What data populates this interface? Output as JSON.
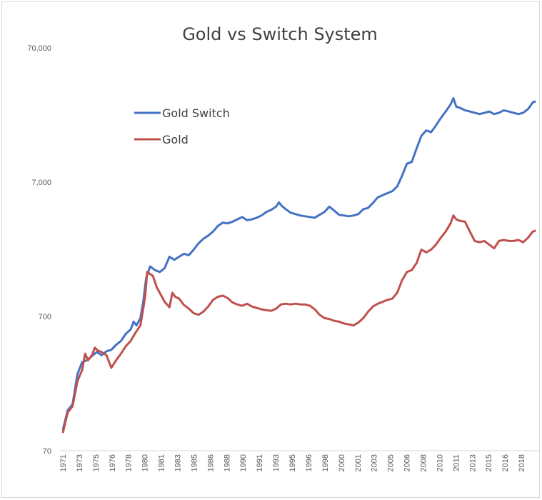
{
  "chart_data": {
    "type": "line",
    "title": "Gold vs Switch System",
    "y_scale": "log",
    "ylim": [
      70,
      70000
    ],
    "y_ticks": [
      {
        "value": 70,
        "label": "70"
      },
      {
        "value": 700,
        "label": "700"
      },
      {
        "value": 7000,
        "label": "7,000"
      },
      {
        "value": 70000,
        "label": "70,000"
      }
    ],
    "x_tick_labels": [
      "1971",
      "1973",
      "1975",
      "1976",
      "1978",
      "1980",
      "1981",
      "1983",
      "1985",
      "1986",
      "1988",
      "1990",
      "1991",
      "1993",
      "1995",
      "1996",
      "1998",
      "2000",
      "2001",
      "2003",
      "2005",
      "2006",
      "2008",
      "2010",
      "2011",
      "2013",
      "2015",
      "2016",
      "2018"
    ],
    "xlim": [
      1971,
      2020
    ],
    "grid": false,
    "legend_position": "upper-left",
    "series": [
      {
        "name": "Gold Switch",
        "color": "#4472C4",
        "points": [
          [
            1971.0,
            100
          ],
          [
            1971.5,
            140
          ],
          [
            1972.0,
            155
          ],
          [
            1972.5,
            260
          ],
          [
            1973.0,
            320
          ],
          [
            1973.5,
            330
          ],
          [
            1974.0,
            355
          ],
          [
            1974.5,
            380
          ],
          [
            1975.0,
            360
          ],
          [
            1975.5,
            385
          ],
          [
            1976.0,
            395
          ],
          [
            1976.5,
            430
          ],
          [
            1977.0,
            460
          ],
          [
            1977.5,
            520
          ],
          [
            1978.0,
            560
          ],
          [
            1978.3,
            640
          ],
          [
            1978.6,
            600
          ],
          [
            1979.0,
            680
          ],
          [
            1979.3,
            900
          ],
          [
            1979.6,
            1350
          ],
          [
            1980.0,
            1650
          ],
          [
            1980.5,
            1550
          ],
          [
            1981.0,
            1500
          ],
          [
            1981.5,
            1600
          ],
          [
            1982.0,
            1950
          ],
          [
            1982.5,
            1850
          ],
          [
            1983.0,
            1950
          ],
          [
            1983.5,
            2050
          ],
          [
            1984.0,
            2000
          ],
          [
            1984.5,
            2200
          ],
          [
            1985.0,
            2450
          ],
          [
            1985.5,
            2650
          ],
          [
            1986.0,
            2800
          ],
          [
            1986.5,
            3000
          ],
          [
            1987.0,
            3300
          ],
          [
            1987.5,
            3500
          ],
          [
            1988.0,
            3450
          ],
          [
            1988.5,
            3550
          ],
          [
            1989.0,
            3700
          ],
          [
            1989.5,
            3850
          ],
          [
            1990.0,
            3650
          ],
          [
            1990.5,
            3700
          ],
          [
            1991.0,
            3800
          ],
          [
            1991.5,
            3950
          ],
          [
            1992.0,
            4200
          ],
          [
            1992.5,
            4350
          ],
          [
            1993.0,
            4600
          ],
          [
            1993.3,
            4950
          ],
          [
            1993.6,
            4650
          ],
          [
            1994.0,
            4400
          ],
          [
            1994.5,
            4150
          ],
          [
            1995.0,
            4050
          ],
          [
            1995.5,
            3950
          ],
          [
            1996.0,
            3900
          ],
          [
            1996.5,
            3850
          ],
          [
            1997.0,
            3800
          ],
          [
            1997.5,
            4000
          ],
          [
            1998.0,
            4200
          ],
          [
            1998.5,
            4600
          ],
          [
            1999.0,
            4300
          ],
          [
            1999.5,
            4000
          ],
          [
            2000.0,
            3950
          ],
          [
            2000.5,
            3900
          ],
          [
            2001.0,
            3950
          ],
          [
            2001.5,
            4050
          ],
          [
            2002.0,
            4400
          ],
          [
            2002.5,
            4500
          ],
          [
            2003.0,
            4900
          ],
          [
            2003.5,
            5400
          ],
          [
            2004.0,
            5600
          ],
          [
            2004.5,
            5800
          ],
          [
            2005.0,
            6000
          ],
          [
            2005.5,
            6500
          ],
          [
            2006.0,
            7800
          ],
          [
            2006.5,
            9600
          ],
          [
            2007.0,
            9900
          ],
          [
            2007.5,
            12500
          ],
          [
            2008.0,
            15500
          ],
          [
            2008.5,
            17000
          ],
          [
            2009.0,
            16500
          ],
          [
            2009.5,
            18500
          ],
          [
            2010.0,
            21000
          ],
          [
            2010.5,
            23500
          ],
          [
            2011.0,
            26500
          ],
          [
            2011.3,
            29500
          ],
          [
            2011.6,
            25500
          ],
          [
            2012.0,
            25000
          ],
          [
            2012.5,
            24000
          ],
          [
            2013.0,
            23500
          ],
          [
            2013.5,
            23000
          ],
          [
            2014.0,
            22500
          ],
          [
            2014.5,
            23000
          ],
          [
            2015.0,
            23500
          ],
          [
            2015.5,
            22500
          ],
          [
            2016.0,
            23000
          ],
          [
            2016.5,
            24000
          ],
          [
            2017.0,
            23500
          ],
          [
            2017.5,
            23000
          ],
          [
            2018.0,
            22500
          ],
          [
            2018.5,
            23000
          ],
          [
            2019.0,
            24500
          ],
          [
            2019.5,
            27500
          ],
          [
            2019.8,
            28000
          ]
        ]
      },
      {
        "name": "Gold",
        "color": "#C0504D",
        "points": [
          [
            1971.0,
            95
          ],
          [
            1971.5,
            135
          ],
          [
            1972.0,
            150
          ],
          [
            1972.5,
            230
          ],
          [
            1973.0,
            280
          ],
          [
            1973.3,
            370
          ],
          [
            1973.6,
            330
          ],
          [
            1974.0,
            360
          ],
          [
            1974.3,
            410
          ],
          [
            1974.6,
            390
          ],
          [
            1975.0,
            380
          ],
          [
            1975.5,
            360
          ],
          [
            1976.0,
            290
          ],
          [
            1976.5,
            330
          ],
          [
            1977.0,
            370
          ],
          [
            1977.5,
            420
          ],
          [
            1978.0,
            460
          ],
          [
            1978.5,
            530
          ],
          [
            1979.0,
            600
          ],
          [
            1979.3,
            800
          ],
          [
            1979.5,
            1000
          ],
          [
            1979.7,
            1500
          ],
          [
            1980.0,
            1450
          ],
          [
            1980.3,
            1400
          ],
          [
            1980.7,
            1150
          ],
          [
            1981.0,
            1050
          ],
          [
            1981.5,
            900
          ],
          [
            1982.0,
            820
          ],
          [
            1982.3,
            1050
          ],
          [
            1982.6,
            980
          ],
          [
            1983.0,
            950
          ],
          [
            1983.5,
            850
          ],
          [
            1984.0,
            800
          ],
          [
            1984.5,
            740
          ],
          [
            1985.0,
            720
          ],
          [
            1985.5,
            760
          ],
          [
            1986.0,
            830
          ],
          [
            1986.5,
            930
          ],
          [
            1987.0,
            980
          ],
          [
            1987.5,
            1000
          ],
          [
            1988.0,
            960
          ],
          [
            1988.5,
            890
          ],
          [
            1989.0,
            860
          ],
          [
            1989.5,
            840
          ],
          [
            1990.0,
            870
          ],
          [
            1990.5,
            830
          ],
          [
            1991.0,
            810
          ],
          [
            1991.5,
            790
          ],
          [
            1992.0,
            780
          ],
          [
            1992.5,
            770
          ],
          [
            1993.0,
            800
          ],
          [
            1993.5,
            860
          ],
          [
            1994.0,
            870
          ],
          [
            1994.5,
            860
          ],
          [
            1995.0,
            870
          ],
          [
            1995.5,
            860
          ],
          [
            1996.0,
            860
          ],
          [
            1996.5,
            840
          ],
          [
            1997.0,
            790
          ],
          [
            1997.5,
            720
          ],
          [
            1998.0,
            680
          ],
          [
            1998.5,
            670
          ],
          [
            1999.0,
            650
          ],
          [
            1999.5,
            640
          ],
          [
            2000.0,
            620
          ],
          [
            2000.5,
            610
          ],
          [
            2001.0,
            600
          ],
          [
            2001.5,
            630
          ],
          [
            2002.0,
            680
          ],
          [
            2002.5,
            760
          ],
          [
            2003.0,
            830
          ],
          [
            2003.5,
            870
          ],
          [
            2004.0,
            900
          ],
          [
            2004.5,
            930
          ],
          [
            2005.0,
            950
          ],
          [
            2005.5,
            1050
          ],
          [
            2006.0,
            1300
          ],
          [
            2006.5,
            1500
          ],
          [
            2007.0,
            1550
          ],
          [
            2007.5,
            1750
          ],
          [
            2008.0,
            2200
          ],
          [
            2008.5,
            2100
          ],
          [
            2009.0,
            2200
          ],
          [
            2009.5,
            2400
          ],
          [
            2010.0,
            2700
          ],
          [
            2010.5,
            3000
          ],
          [
            2011.0,
            3450
          ],
          [
            2011.3,
            3950
          ],
          [
            2011.6,
            3700
          ],
          [
            2012.0,
            3600
          ],
          [
            2012.5,
            3550
          ],
          [
            2013.0,
            3000
          ],
          [
            2013.5,
            2550
          ],
          [
            2014.0,
            2500
          ],
          [
            2014.5,
            2550
          ],
          [
            2015.0,
            2400
          ],
          [
            2015.5,
            2250
          ],
          [
            2016.0,
            2550
          ],
          [
            2016.5,
            2600
          ],
          [
            2017.0,
            2550
          ],
          [
            2017.5,
            2550
          ],
          [
            2018.0,
            2600
          ],
          [
            2018.5,
            2500
          ],
          [
            2019.0,
            2700
          ],
          [
            2019.5,
            3000
          ],
          [
            2019.8,
            3050
          ]
        ]
      }
    ]
  }
}
